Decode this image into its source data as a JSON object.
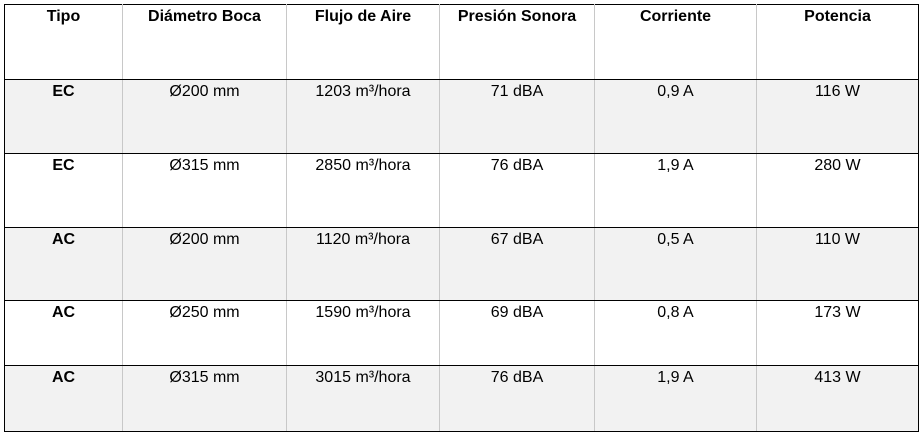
{
  "table": {
    "header": [
      "Tipo",
      "Diámetro Boca",
      "Flujo de Aire",
      "Presión Sonora",
      "Corriente",
      "Potencia"
    ],
    "rows": [
      [
        "EC",
        "Ø200 mm",
        "1203 m³/hora",
        "71 dBA",
        "0,9 A",
        "116 W"
      ],
      [
        "EC",
        "Ø315 mm",
        "2850 m³/hora",
        "76 dBA",
        "1,9 A",
        "280 W"
      ],
      [
        "AC",
        "Ø200 mm",
        "1120 m³/hora",
        "67 dBA",
        "0,5 A",
        "110 W"
      ],
      [
        "AC",
        "Ø250 mm",
        "1590 m³/hora",
        "69 dBA",
        "0,8 A",
        "173 W"
      ],
      [
        "AC",
        "Ø315 mm",
        "3015 m³/hora",
        "76 dBA",
        "1,9 A",
        "413 W"
      ]
    ]
  }
}
